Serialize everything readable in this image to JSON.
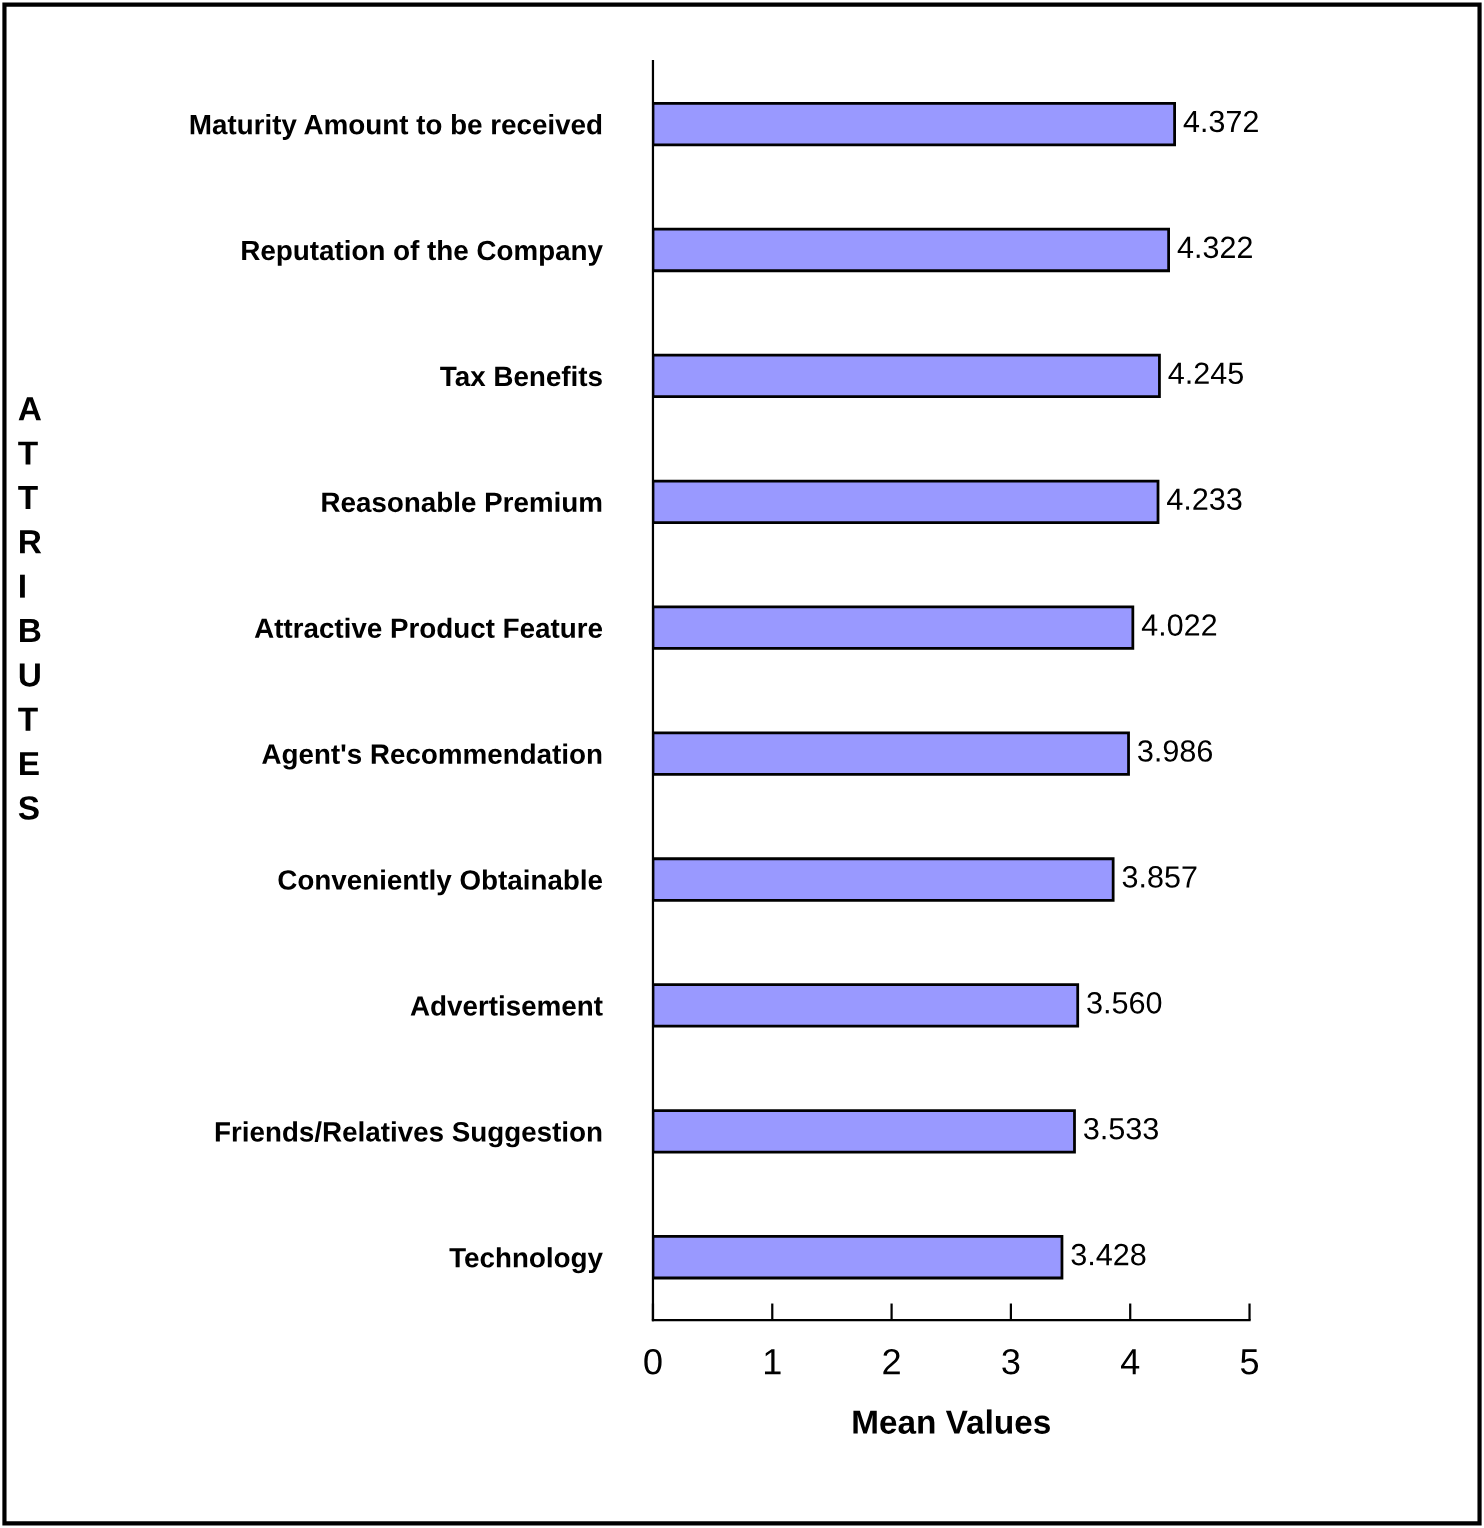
{
  "chart_data": {
    "type": "bar",
    "orientation": "horizontal",
    "categories": [
      "Maturity Amount to be received",
      "Reputation of the Company",
      "Tax Benefits",
      "Reasonable Premium",
      "Attractive Product Feature",
      "Agent's Recommendation",
      "Conveniently Obtainable",
      "Advertisement",
      "Friends/Relatives Suggestion",
      "Technology"
    ],
    "values": [
      4.372,
      4.322,
      4.245,
      4.233,
      4.022,
      3.986,
      3.857,
      3.56,
      3.533,
      3.428
    ],
    "value_labels": [
      "4.372",
      "4.322",
      "4.245",
      "4.233",
      "4.022",
      "3.986",
      "3.857",
      "3.560",
      "3.533",
      "3.428"
    ],
    "color": "#9999ff",
    "xlabel": "Mean Values",
    "ylabel": "ATTRIBUTES",
    "xlim": [
      0,
      5
    ],
    "xticks": [
      0,
      1,
      2,
      3,
      4,
      5
    ],
    "grid": false,
    "legend": false
  }
}
